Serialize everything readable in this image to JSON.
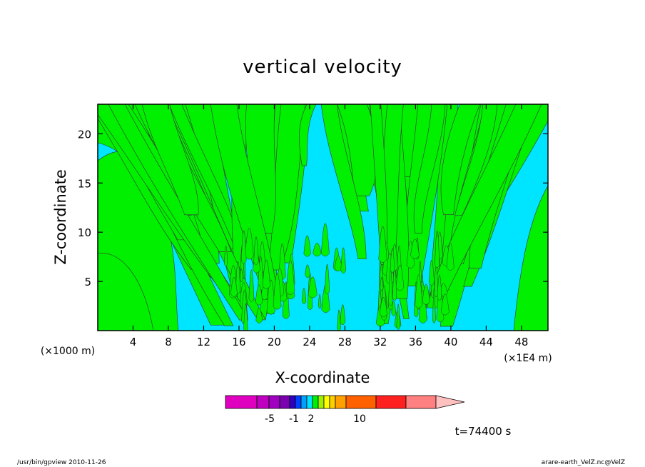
{
  "chart_data": {
    "type": "heatmap",
    "title": "vertical velocity",
    "xlabel": "X-coordinate",
    "ylabel": "Z-coordinate",
    "x_unit_left": "(×1000 m)",
    "x_unit_right": "(×1E4 m)",
    "xlim": [
      0,
      51
    ],
    "ylim": [
      0,
      23
    ],
    "xticks": [
      "4",
      "8",
      "12",
      "16",
      "20",
      "24",
      "28",
      "32",
      "36",
      "40",
      "44",
      "48"
    ],
    "yticks": [
      "5",
      "10",
      "15",
      "20"
    ],
    "dominant_levels": [
      {
        "level": "negative",
        "color": "#00e5ff"
      },
      {
        "level": "positive",
        "color": "#00f000"
      }
    ],
    "colorbar": {
      "segments": [
        {
          "color": "#e000c0"
        },
        {
          "color": "#c000c0"
        },
        {
          "color": "#a000c0"
        },
        {
          "color": "#7a00b0"
        },
        {
          "color": "#3000c0"
        },
        {
          "color": "#0040ff"
        },
        {
          "color": "#00a0ff"
        },
        {
          "color": "#00e5ff"
        },
        {
          "color": "#00f000"
        },
        {
          "color": "#a0f000"
        },
        {
          "color": "#ffff00"
        },
        {
          "color": "#ffd000"
        },
        {
          "color": "#ffa000"
        },
        {
          "color": "#ff6000"
        },
        {
          "color": "#ff2020"
        },
        {
          "color": "#ff8080"
        },
        {
          "color": "#ffc0c0"
        }
      ],
      "labels": [
        "-5",
        "-1",
        "2",
        "10"
      ]
    },
    "time_label": "t=74400 s"
  },
  "footer": {
    "left": "/usr/bin/gpview   2010-11-26",
    "right": "arare-earth_VelZ.nc@VelZ"
  }
}
